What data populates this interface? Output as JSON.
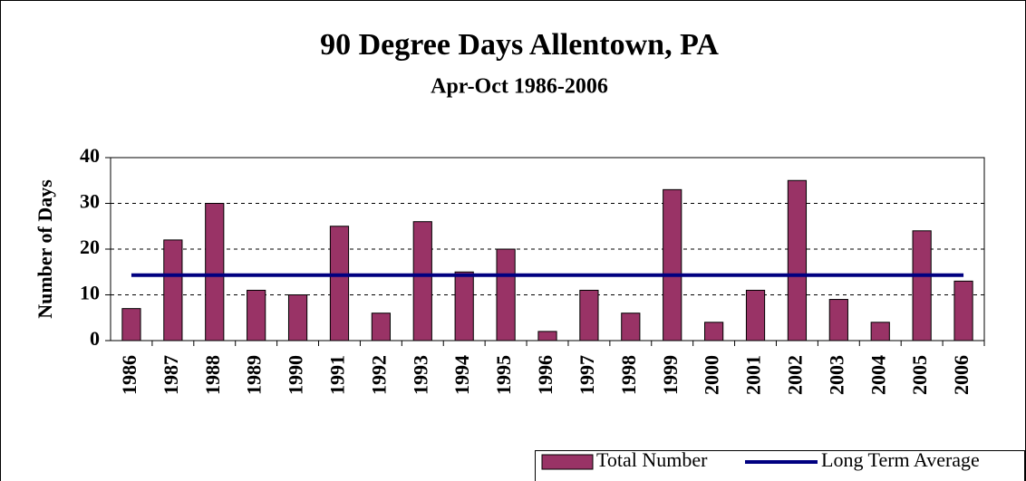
{
  "chart_data": {
    "type": "bar",
    "title": "90 Degree Days Allentown, PA",
    "subtitle": "Apr-Oct 1986-2006",
    "y_label": "Number of Days",
    "categories": [
      "1986",
      "1987",
      "1988",
      "1989",
      "1990",
      "1991",
      "1992",
      "1993",
      "1994",
      "1995",
      "1996",
      "1997",
      "1998",
      "1999",
      "2000",
      "2001",
      "2002",
      "2003",
      "2004",
      "2005",
      "2006"
    ],
    "series": [
      {
        "name": "Total Number",
        "type": "bar",
        "color": "#993366",
        "values": [
          7,
          22,
          30,
          11,
          10,
          25,
          6,
          26,
          15,
          20,
          2,
          11,
          6,
          33,
          4,
          11,
          35,
          9,
          4,
          24,
          13
        ]
      },
      {
        "name": "Long Term Average",
        "type": "line",
        "color": "#000080",
        "values": [
          14.3,
          14.3,
          14.3,
          14.3,
          14.3,
          14.3,
          14.3,
          14.3,
          14.3,
          14.3,
          14.3,
          14.3,
          14.3,
          14.3,
          14.3,
          14.3,
          14.3,
          14.3,
          14.3,
          14.3,
          14.3
        ]
      }
    ],
    "ylim": [
      0,
      40
    ],
    "yticks": [
      0,
      10,
      20,
      30,
      40
    ],
    "grid": true,
    "legend": "bottom-right"
  }
}
